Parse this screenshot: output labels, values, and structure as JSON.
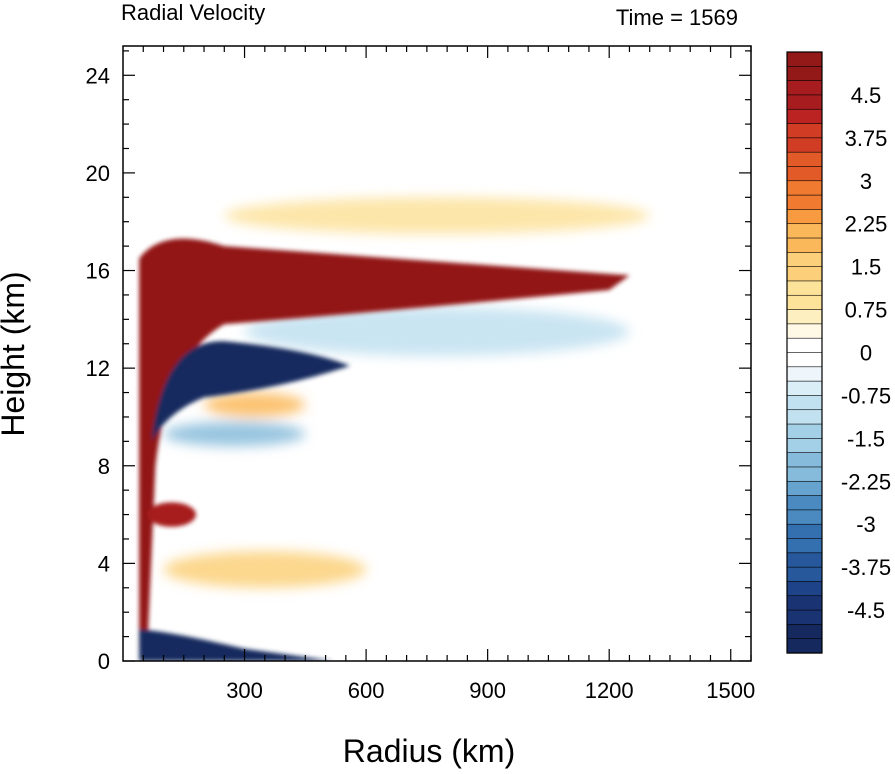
{
  "chart_data": {
    "type": "heatmap",
    "title": "Radial Velocity",
    "time_label": "Time = 1569",
    "xlabel": "Radius (km)",
    "ylabel": "Height (km)",
    "xlim": [
      0,
      1550
    ],
    "ylim": [
      0,
      25.2
    ],
    "x_ticks": [
      300,
      600,
      900,
      1200,
      1500
    ],
    "y_ticks": [
      0,
      4,
      8,
      12,
      16,
      20,
      24
    ],
    "colorbar": {
      "range": [
        -5.25,
        5.25
      ],
      "interval": 0.25,
      "tick_labels": [
        "4.5",
        "3.75",
        "3",
        "2.25",
        "1.5",
        "0.75",
        "0",
        "-0.75",
        "-1.5",
        "-2.25",
        "-3",
        "-3.75",
        "-4.5"
      ],
      "tick_values": [
        4.5,
        3.75,
        3,
        2.25,
        1.5,
        0.75,
        0,
        -0.75,
        -1.5,
        -2.25,
        -3,
        -3.75,
        -4.5
      ]
    },
    "features": [
      {
        "name": "upper outflow jet",
        "value": 5.0,
        "radius_km": [
          40,
          1250
        ],
        "height_km": [
          13.8,
          17.5
        ]
      },
      {
        "name": "mid-level inflow",
        "value": -5.0,
        "radius_km": [
          40,
          550
        ],
        "height_km": [
          10.8,
          13.2
        ]
      },
      {
        "name": "boundary-layer inflow",
        "value": -5.0,
        "radius_km": [
          40,
          520
        ],
        "height_km": [
          0,
          1.3
        ]
      },
      {
        "name": "mid-level outflow",
        "value": 4.5,
        "radius_km": [
          60,
          180
        ],
        "height_km": [
          5.5,
          6.5
        ]
      },
      {
        "name": "weak outflow above jet",
        "value": 1.0,
        "radius_km": [
          250,
          1300
        ],
        "height_km": [
          17.5,
          19.0
        ]
      },
      {
        "name": "weak inflow below jet",
        "value": -1.3,
        "radius_km": [
          300,
          1250
        ],
        "height_km": [
          12.5,
          14.5
        ]
      },
      {
        "name": "weak outflow",
        "value": 1.8,
        "radius_km": [
          200,
          450
        ],
        "height_km": [
          10.0,
          11.0
        ]
      },
      {
        "name": "weak inflow",
        "value": -1.8,
        "radius_km": [
          100,
          450
        ],
        "height_km": [
          8.8,
          9.8
        ]
      },
      {
        "name": "weak outflow low level",
        "value": 1.5,
        "radius_km": [
          100,
          600
        ],
        "height_km": [
          3.0,
          4.5
        ]
      }
    ]
  }
}
